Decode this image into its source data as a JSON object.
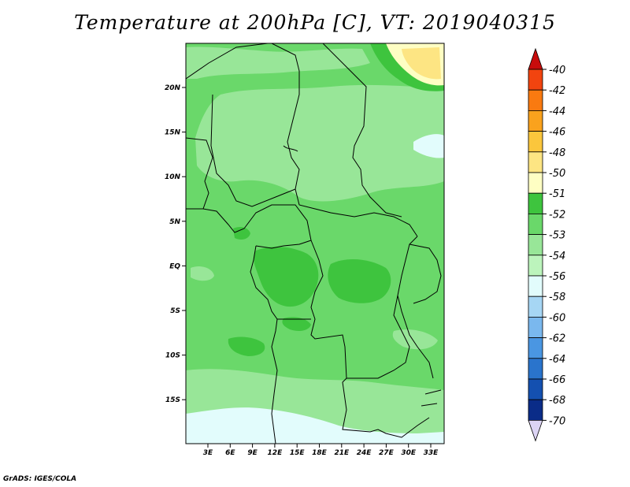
{
  "title": "Temperature at 200hPa [C], VT: 2019040315",
  "footer": "GrADS: IGES/COLA",
  "map": {
    "lon_ticks": [
      "3E",
      "6E",
      "9E",
      "12E",
      "15E",
      "18E",
      "21E",
      "24E",
      "27E",
      "30E",
      "33E"
    ],
    "lat_ticks": [
      "20N",
      "15N",
      "10N",
      "5N",
      "EQ",
      "5S",
      "10S",
      "15S"
    ]
  },
  "colorbar": {
    "labels": [
      "-40",
      "-42",
      "-44",
      "-46",
      "-48",
      "-50",
      "-51",
      "-52",
      "-53",
      "-54",
      "-56",
      "-58",
      "-60",
      "-62",
      "-64",
      "-66",
      "-68",
      "-70"
    ],
    "colors": [
      "#e01c12",
      "#f2440f",
      "#f97a10",
      "#faa21d",
      "#fbc63c",
      "#fde583",
      "#fefec3",
      "#3ec43e",
      "#6ad86a",
      "#98e698",
      "#bcf4bc",
      "#e2fcfc",
      "#a6d6f4",
      "#7ab8ee",
      "#4a96e2",
      "#2a74cc",
      "#1450b0",
      "#0a2c88",
      "#061468"
    ],
    "top_tip_color": "#c80c0c",
    "bottom_tip_color": "#dcd4f4"
  }
}
